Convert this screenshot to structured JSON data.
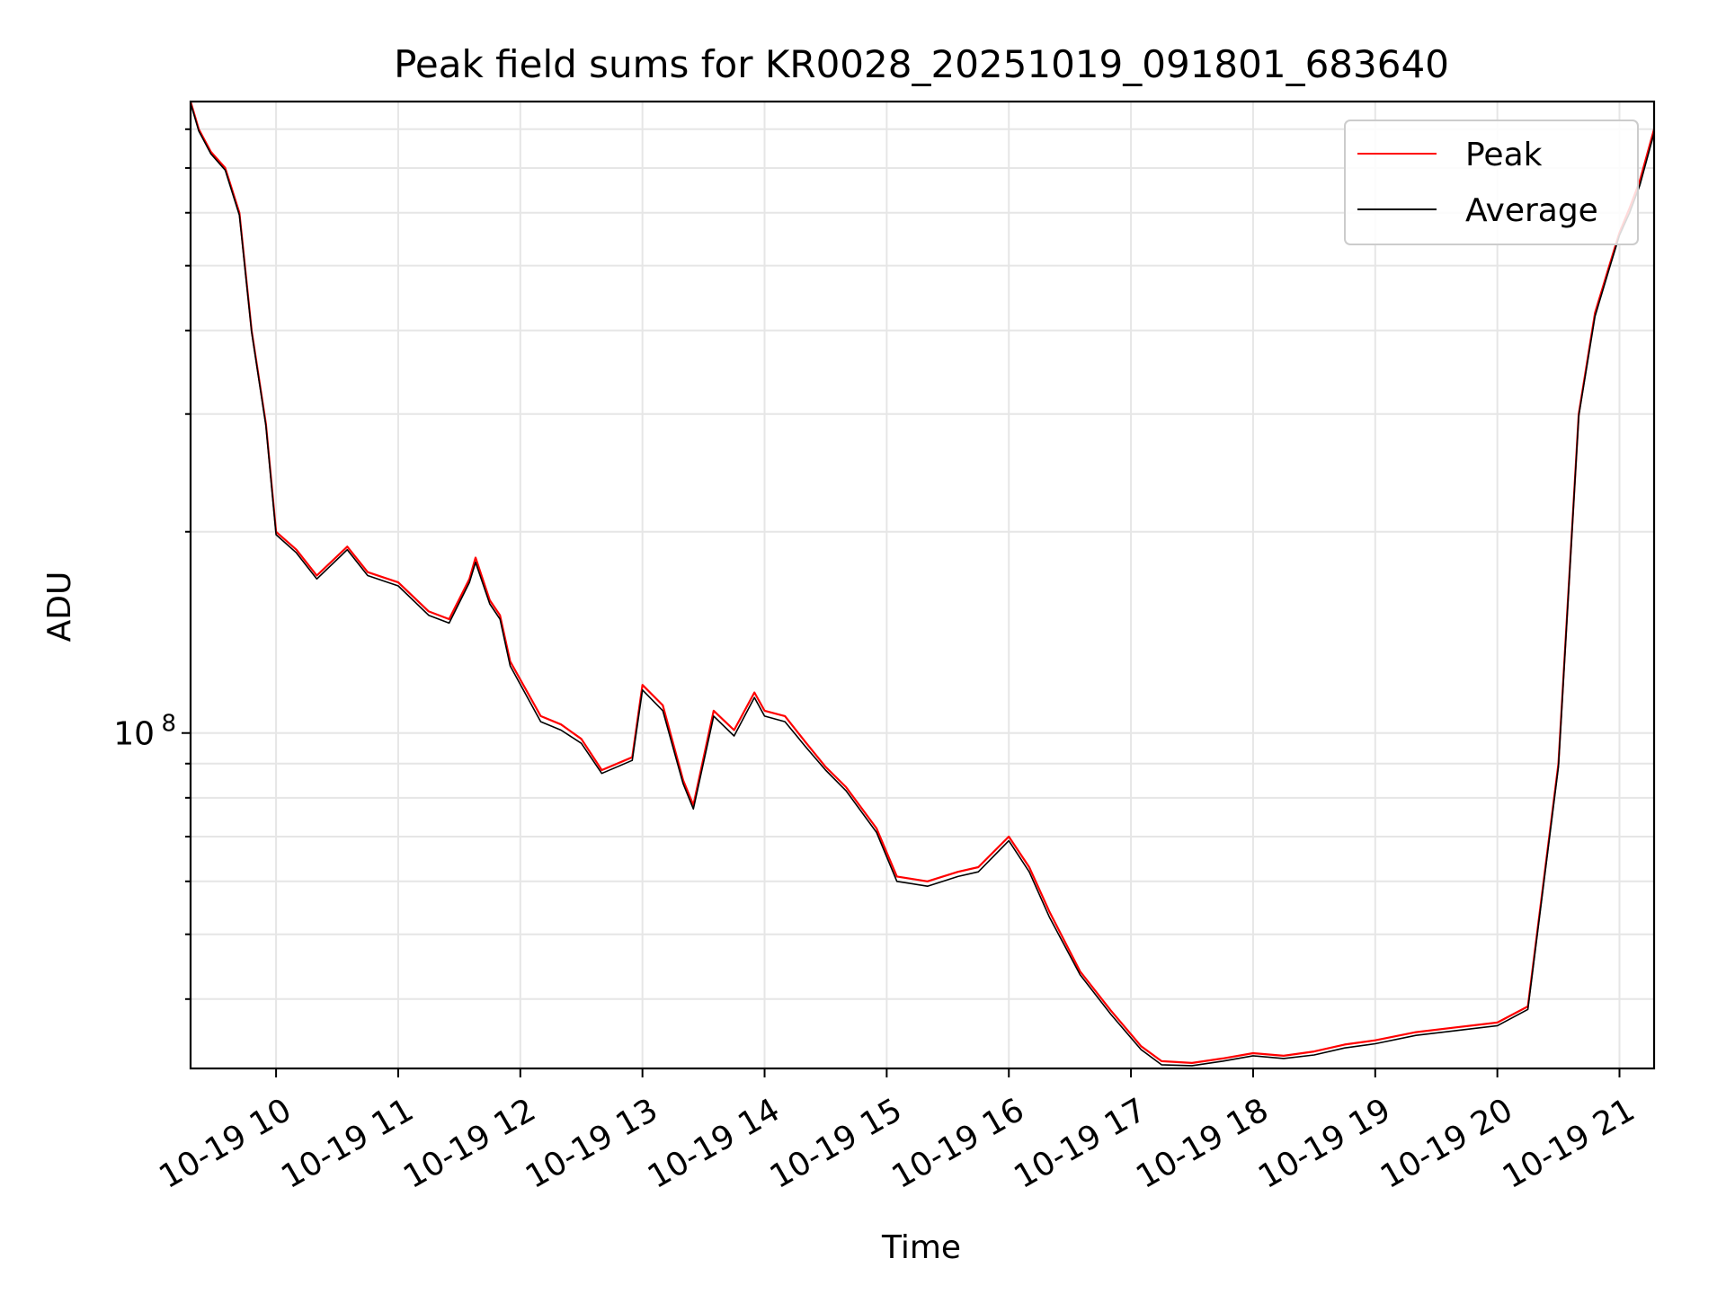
{
  "chart_data": {
    "type": "line",
    "title": "Peak field sums for KR0028_20251019_091801_683640",
    "xlabel": "Time",
    "ylabel": "ADU",
    "yscale": "log",
    "grid": true,
    "legend_position": "top-right",
    "xlim": [
      "2025-10-19 09:18",
      "2025-10-19 21:17"
    ],
    "ylim": [
      31500000,
      880000000
    ],
    "x_ticks": [
      "2025-10-19 10:00",
      "2025-10-19 11:00",
      "2025-10-19 12:00",
      "2025-10-19 13:00",
      "2025-10-19 14:00",
      "2025-10-19 15:00",
      "2025-10-19 16:00",
      "2025-10-19 17:00",
      "2025-10-19 18:00",
      "2025-10-19 19:00",
      "2025-10-19 20:00",
      "2025-10-19 21:00"
    ],
    "x_tick_labels": [
      "10-19 10",
      "10-19 11",
      "10-19 12",
      "10-19 13",
      "10-19 14",
      "10-19 15",
      "10-19 16",
      "10-19 17",
      "10-19 18",
      "10-19 19",
      "10-19 20",
      "10-19 21"
    ],
    "y_major_ticks": [
      100000000
    ],
    "y_major_tick_labels": [
      "10"
    ],
    "y_major_tick_exponent": "8",
    "y_minor_ticks": [
      40000000,
      50000000,
      60000000,
      70000000,
      80000000,
      90000000,
      200000000,
      300000000,
      400000000,
      500000000,
      600000000,
      700000000,
      800000000
    ],
    "series": [
      {
        "name": "Peak",
        "color": "#ff0000",
        "x": [
          "2025-10-19 09:18",
          "2025-10-19 09:22",
          "2025-10-19 09:28",
          "2025-10-19 09:35",
          "2025-10-19 09:42",
          "2025-10-19 09:48",
          "2025-10-19 09:55",
          "2025-10-19 10:00",
          "2025-10-19 10:10",
          "2025-10-19 10:20",
          "2025-10-19 10:35",
          "2025-10-19 10:45",
          "2025-10-19 11:00",
          "2025-10-19 11:15",
          "2025-10-19 11:25",
          "2025-10-19 11:35",
          "2025-10-19 11:38",
          "2025-10-19 11:45",
          "2025-10-19 11:50",
          "2025-10-19 11:55",
          "2025-10-19 12:10",
          "2025-10-19 12:20",
          "2025-10-19 12:30",
          "2025-10-19 12:40",
          "2025-10-19 12:55",
          "2025-10-19 13:00",
          "2025-10-19 13:10",
          "2025-10-19 13:20",
          "2025-10-19 13:25",
          "2025-10-19 13:35",
          "2025-10-19 13:45",
          "2025-10-19 13:55",
          "2025-10-19 14:00",
          "2025-10-19 14:10",
          "2025-10-19 14:20",
          "2025-10-19 14:30",
          "2025-10-19 14:40",
          "2025-10-19 14:55",
          "2025-10-19 15:05",
          "2025-10-19 15:20",
          "2025-10-19 15:35",
          "2025-10-19 15:45",
          "2025-10-19 16:00",
          "2025-10-19 16:10",
          "2025-10-19 16:20",
          "2025-10-19 16:35",
          "2025-10-19 16:50",
          "2025-10-19 17:05",
          "2025-10-19 17:15",
          "2025-10-19 17:30",
          "2025-10-19 17:45",
          "2025-10-19 18:00",
          "2025-10-19 18:15",
          "2025-10-19 18:30",
          "2025-10-19 18:45",
          "2025-10-19 19:00",
          "2025-10-19 19:20",
          "2025-10-19 19:40",
          "2025-10-19 20:00",
          "2025-10-19 20:15",
          "2025-10-19 20:30",
          "2025-10-19 20:40",
          "2025-10-19 20:48",
          "2025-10-19 20:55",
          "2025-10-19 21:00",
          "2025-10-19 21:05",
          "2025-10-19 21:10",
          "2025-10-19 21:17"
        ],
        "y": [
          880000000,
          800000000,
          740000000,
          700000000,
          600000000,
          400000000,
          290000000,
          200000000,
          188000000,
          172000000,
          190000000,
          174000000,
          168000000,
          152000000,
          148000000,
          170000000,
          183000000,
          158000000,
          150000000,
          128000000,
          106000000,
          103000000,
          98000000,
          88000000,
          92000000,
          118000000,
          110000000,
          85000000,
          78000000,
          108000000,
          101000000,
          115000000,
          108000000,
          106000000,
          97000000,
          89000000,
          83000000,
          72000000,
          61000000,
          60000000,
          62000000,
          63000000,
          70000000,
          63000000,
          54000000,
          44000000,
          38500000,
          34000000,
          32300000,
          32100000,
          32600000,
          33200000,
          32900000,
          33400000,
          34200000,
          34700000,
          35700000,
          36300000,
          36900000,
          39000000,
          90000000,
          300000000,
          425000000,
          500000000,
          560000000,
          610000000,
          670000000,
          800000000
        ]
      },
      {
        "name": "Average",
        "color": "#000000",
        "x": [
          "2025-10-19 09:18",
          "2025-10-19 09:22",
          "2025-10-19 09:28",
          "2025-10-19 09:35",
          "2025-10-19 09:42",
          "2025-10-19 09:48",
          "2025-10-19 09:55",
          "2025-10-19 10:00",
          "2025-10-19 10:10",
          "2025-10-19 10:20",
          "2025-10-19 10:35",
          "2025-10-19 10:45",
          "2025-10-19 11:00",
          "2025-10-19 11:15",
          "2025-10-19 11:25",
          "2025-10-19 11:35",
          "2025-10-19 11:38",
          "2025-10-19 11:45",
          "2025-10-19 11:50",
          "2025-10-19 11:55",
          "2025-10-19 12:10",
          "2025-10-19 12:20",
          "2025-10-19 12:30",
          "2025-10-19 12:40",
          "2025-10-19 12:55",
          "2025-10-19 13:00",
          "2025-10-19 13:10",
          "2025-10-19 13:20",
          "2025-10-19 13:25",
          "2025-10-19 13:35",
          "2025-10-19 13:45",
          "2025-10-19 13:55",
          "2025-10-19 14:00",
          "2025-10-19 14:10",
          "2025-10-19 14:20",
          "2025-10-19 14:30",
          "2025-10-19 14:40",
          "2025-10-19 14:55",
          "2025-10-19 15:05",
          "2025-10-19 15:20",
          "2025-10-19 15:35",
          "2025-10-19 15:45",
          "2025-10-19 16:00",
          "2025-10-19 16:10",
          "2025-10-19 16:20",
          "2025-10-19 16:35",
          "2025-10-19 16:50",
          "2025-10-19 17:05",
          "2025-10-19 17:15",
          "2025-10-19 17:30",
          "2025-10-19 17:45",
          "2025-10-19 18:00",
          "2025-10-19 18:15",
          "2025-10-19 18:30",
          "2025-10-19 18:45",
          "2025-10-19 19:00",
          "2025-10-19 19:20",
          "2025-10-19 19:40",
          "2025-10-19 20:00",
          "2025-10-19 20:15",
          "2025-10-19 20:30",
          "2025-10-19 20:40",
          "2025-10-19 20:48",
          "2025-10-19 20:55",
          "2025-10-19 21:00",
          "2025-10-19 21:05",
          "2025-10-19 21:10",
          "2025-10-19 21:17"
        ],
        "y": [
          875000000,
          795000000,
          735000000,
          695000000,
          595000000,
          398000000,
          288000000,
          198000000,
          186000000,
          170000000,
          188000000,
          172000000,
          166000000,
          150000000,
          146000000,
          168000000,
          180000000,
          156000000,
          148000000,
          126000000,
          104000000,
          101000000,
          96500000,
          87000000,
          91000000,
          116000000,
          108000000,
          84000000,
          77000000,
          106000000,
          99000000,
          113000000,
          106000000,
          104000000,
          95500000,
          88000000,
          82000000,
          71000000,
          60000000,
          59000000,
          61000000,
          62000000,
          69000000,
          62000000,
          53000000,
          43500000,
          38000000,
          33600000,
          31900000,
          31800000,
          32300000,
          32900000,
          32600000,
          33000000,
          33800000,
          34300000,
          35300000,
          35900000,
          36500000,
          38600000,
          89000000,
          298000000,
          420000000,
          495000000,
          555000000,
          600000000,
          660000000,
          790000000
        ]
      }
    ]
  }
}
